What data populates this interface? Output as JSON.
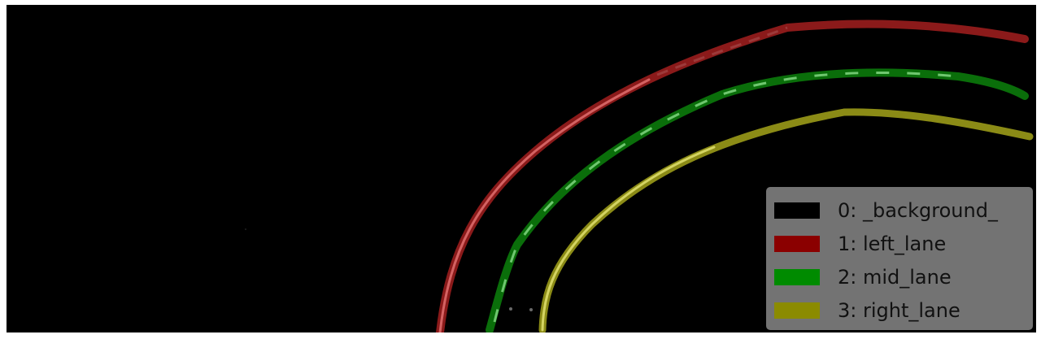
{
  "legend": {
    "items": [
      {
        "label": "0: _background_",
        "color": "#000000"
      },
      {
        "label": "1: left_lane",
        "color": "#8b0000"
      },
      {
        "label": "2: mid_lane",
        "color": "#008b00"
      },
      {
        "label": "3: right_lane",
        "color": "#8b8b00"
      }
    ]
  },
  "lanes": {
    "left": "#8b1a1a",
    "mid": "#0a6e0a",
    "right": "#8b8b16"
  }
}
